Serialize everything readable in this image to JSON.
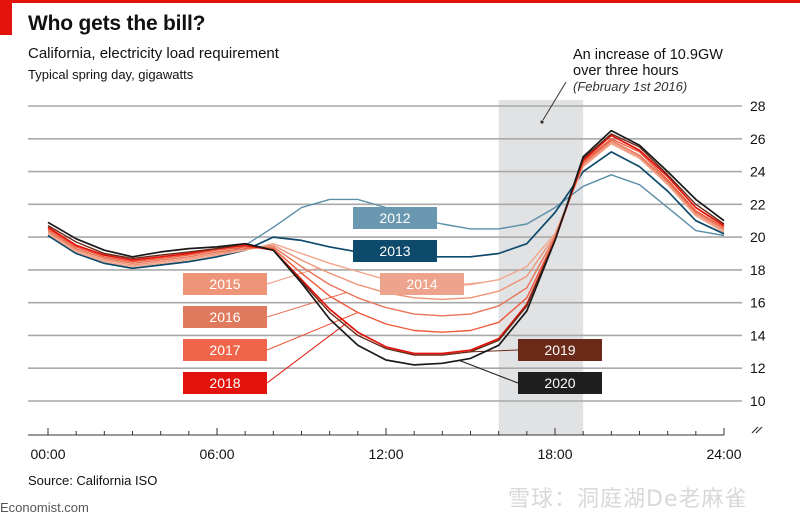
{
  "header": {
    "title": "Who gets the bill?",
    "subtitle": "California, electricity load requirement",
    "unit": "Typical spring day, gigawatts"
  },
  "annotation": {
    "line1": "An increase of 10.9GW",
    "line2": "over three hours",
    "line3": "(February 1st 2016)",
    "shaded_from_hour": 16,
    "shaded_to_hour": 19
  },
  "footer": {
    "source": "Source: California ISO",
    "site": "Economist.com",
    "watermark": "雪球：洞庭湖De老麻雀"
  },
  "chart_data": {
    "type": "line",
    "title": "Who gets the bill?",
    "subtitle": "California, electricity load requirement",
    "xlabel": "",
    "ylabel": "Typical spring day, gigawatts",
    "x": [
      0,
      1,
      2,
      3,
      4,
      5,
      6,
      7,
      8,
      9,
      10,
      11,
      12,
      13,
      14,
      15,
      16,
      17,
      18,
      19,
      20,
      21,
      22,
      23,
      24
    ],
    "xlim": [
      0,
      24
    ],
    "ylim": [
      10,
      28
    ],
    "y_axis_break": true,
    "grid": true,
    "y_ticks": [
      "28",
      "26",
      "24",
      "22",
      "20",
      "18",
      "16",
      "14",
      "12",
      "10"
    ],
    "y_tick_values": [
      28,
      26,
      24,
      22,
      20,
      18,
      16,
      14,
      12,
      10
    ],
    "x_ticks": [
      "00:00",
      "06:00",
      "12:00",
      "18:00",
      "24:00"
    ],
    "x_tick_values": [
      0,
      6,
      12,
      18,
      24
    ],
    "legend": "inline-labels",
    "series": [
      {
        "name": "2012",
        "color": "#5b8fa8",
        "label_color": "#6a98b0",
        "values": [
          20.1,
          19.0,
          18.4,
          18.1,
          18.3,
          18.5,
          18.8,
          19.5,
          20.6,
          21.8,
          22.3,
          22.3,
          21.8,
          21.2,
          20.8,
          20.5,
          20.5,
          20.8,
          21.8,
          23.1,
          23.8,
          23.2,
          21.8,
          20.4,
          20.1
        ]
      },
      {
        "name": "2013",
        "color": "#0d4a6b",
        "label_color": "#0d4a6b",
        "values": [
          20.1,
          19.0,
          18.4,
          18.1,
          18.3,
          18.5,
          18.8,
          19.2,
          20.0,
          19.8,
          19.4,
          19.1,
          18.9,
          18.8,
          18.8,
          18.8,
          19.0,
          19.6,
          21.5,
          24.0,
          25.2,
          24.3,
          22.8,
          21.0,
          20.2
        ]
      },
      {
        "name": "2014",
        "color": "#f2a58b",
        "label_color": "#eea48c",
        "values": [
          20.2,
          19.1,
          18.5,
          18.2,
          18.4,
          18.6,
          18.9,
          19.2,
          19.6,
          19.0,
          18.4,
          17.9,
          17.4,
          17.1,
          17.0,
          17.1,
          17.4,
          18.2,
          20.2,
          24.3,
          25.7,
          24.8,
          23.2,
          21.3,
          20.3
        ]
      },
      {
        "name": "2015",
        "color": "#ef9478",
        "label_color": "#ee9479",
        "values": [
          20.3,
          19.2,
          18.6,
          18.3,
          18.5,
          18.7,
          19.0,
          19.3,
          19.5,
          18.6,
          17.8,
          17.1,
          16.6,
          16.3,
          16.2,
          16.3,
          16.7,
          17.6,
          20.1,
          24.4,
          25.8,
          24.9,
          23.3,
          21.4,
          20.4
        ]
      },
      {
        "name": "2016",
        "color": "#e8755a",
        "label_color": "#e07a5e",
        "values": [
          20.4,
          19.3,
          18.7,
          18.4,
          18.6,
          18.8,
          19.1,
          19.3,
          19.4,
          18.2,
          17.1,
          16.3,
          15.7,
          15.3,
          15.2,
          15.3,
          15.8,
          16.9,
          20.0,
          24.5,
          25.9,
          25.0,
          23.4,
          21.5,
          20.5
        ]
      },
      {
        "name": "2017",
        "color": "#f05a3c",
        "label_color": "#f0644a",
        "values": [
          20.5,
          19.4,
          18.8,
          18.5,
          18.7,
          18.9,
          19.2,
          19.4,
          19.3,
          17.8,
          16.4,
          15.4,
          14.7,
          14.3,
          14.2,
          14.3,
          14.8,
          16.3,
          19.9,
          24.6,
          26.0,
          25.2,
          23.5,
          21.6,
          20.6
        ]
      },
      {
        "name": "2018",
        "color": "#e3120b",
        "label_color": "#e3120b",
        "values": [
          20.6,
          19.5,
          18.9,
          18.6,
          18.8,
          19.0,
          19.3,
          19.5,
          19.2,
          17.4,
          15.6,
          14.2,
          13.3,
          12.9,
          12.9,
          13.1,
          13.8,
          15.9,
          19.8,
          24.7,
          26.2,
          25.3,
          23.7,
          21.8,
          20.7
        ]
      },
      {
        "name": "2019",
        "color": "#6b2a17",
        "label_color": "#6b2a17",
        "values": [
          20.7,
          19.7,
          19.0,
          18.7,
          18.9,
          19.1,
          19.3,
          19.6,
          19.2,
          17.3,
          15.4,
          14.0,
          13.2,
          12.8,
          12.8,
          13.0,
          13.7,
          15.8,
          19.8,
          24.8,
          26.3,
          25.5,
          23.8,
          22.0,
          20.8
        ]
      },
      {
        "name": "2020",
        "color": "#1a1a1a",
        "label_color": "#1f1f1f",
        "values": [
          20.9,
          19.9,
          19.2,
          18.8,
          19.1,
          19.3,
          19.4,
          19.6,
          19.2,
          17.2,
          15.0,
          13.4,
          12.5,
          12.2,
          12.3,
          12.6,
          13.4,
          15.5,
          19.8,
          24.9,
          26.5,
          25.6,
          24.0,
          22.3,
          21.0
        ]
      }
    ]
  }
}
